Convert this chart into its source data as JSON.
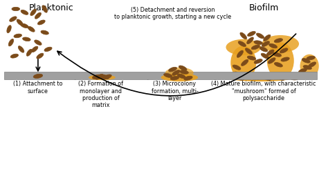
{
  "title_left": "Planktonic",
  "title_right": "Biofilm",
  "bg_color": "#ffffff",
  "surface_color": "#a0a0a0",
  "bacteria_color": "#7B4B1A",
  "biofilm_color": "#E8A020",
  "text_color": "#000000",
  "arrow_color": "#000000",
  "label1": "(1) Attachment to\nsurface",
  "label2": "(2) Formation of\nmonolayer and\nproduction of\nmatrix",
  "label3": "(3) Microcolony\nformation, multi-\nlayer",
  "label4": "(4) Mature biofilm, with characteristic\n\"mushroom\" formed of\npolysaccharide",
  "label5": "(5) Detachment and reversion\nto planktonic growth, starting a new cycle",
  "figsize": [
    4.74,
    2.45
  ],
  "dpi": 100
}
